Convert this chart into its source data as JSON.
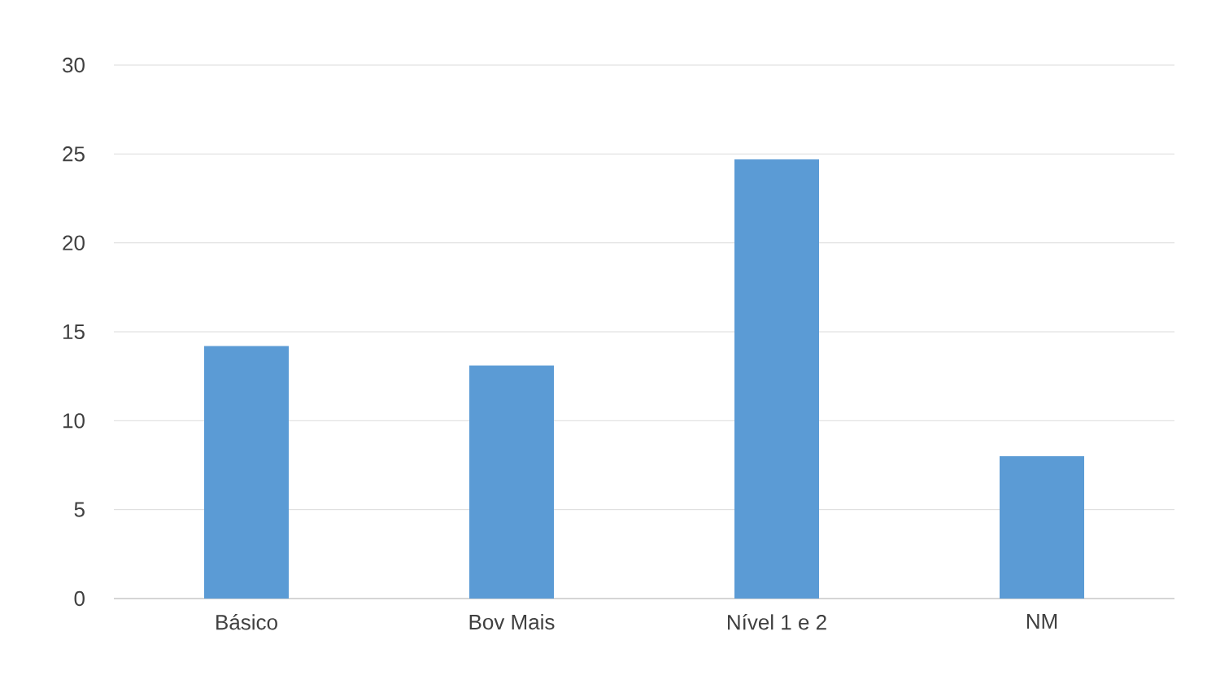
{
  "chart_data": {
    "type": "bar",
    "categories": [
      "Básico",
      "Bov Mais",
      "Nível 1 e 2",
      "NM"
    ],
    "values": [
      14.2,
      13.1,
      24.7,
      8.0
    ],
    "color": "#5b9bd5",
    "ylim": [
      0,
      30
    ],
    "yticks": [
      0,
      5,
      10,
      15,
      20,
      25,
      30
    ],
    "grid": "y"
  }
}
